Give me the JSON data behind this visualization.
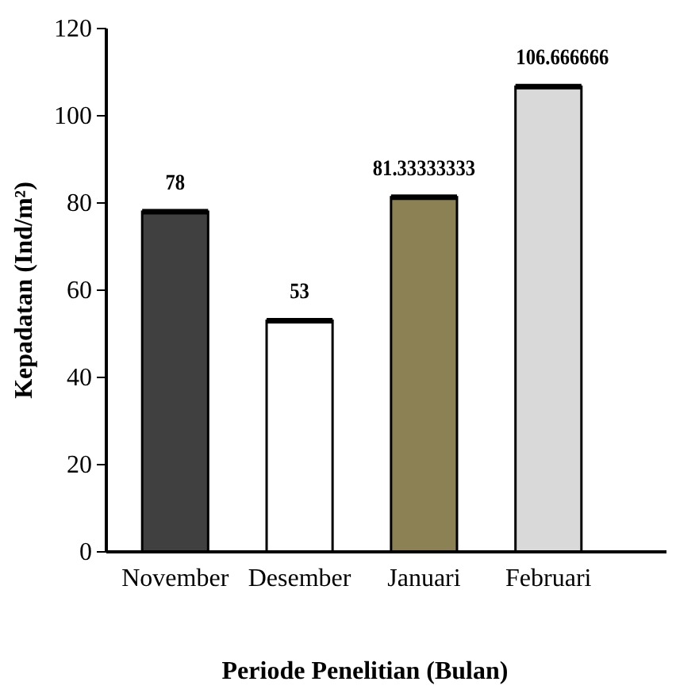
{
  "chart_data": {
    "type": "bar",
    "xlabel": "Periode Penelitian (Bulan)",
    "ylabel": "Kepadatan (Ind/m²)",
    "categories": [
      "November",
      "Desember",
      "Januari",
      "Februari"
    ],
    "values": [
      78,
      53,
      81.33333333,
      106.666666
    ],
    "colors": [
      "#404040",
      "#ffffff",
      "#8b8155",
      "#d9d9d9"
    ],
    "ylim": [
      0,
      120
    ],
    "yticks": [
      0,
      20,
      40,
      60,
      80,
      100,
      120
    ],
    "data_labels": true,
    "grid": false
  }
}
